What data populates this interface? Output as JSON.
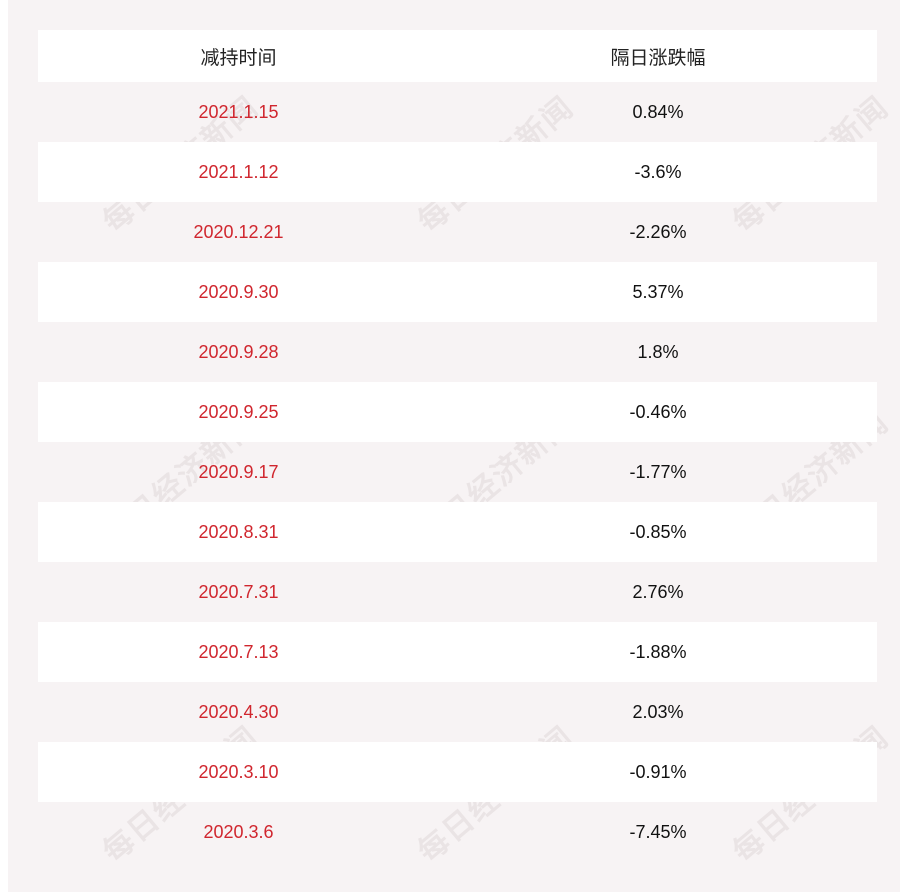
{
  "table": {
    "headers": {
      "time": "减持时间",
      "change": "隔日涨跌幅"
    },
    "rows": [
      {
        "date": "2021.1.15",
        "change": "0.84%"
      },
      {
        "date": "2021.1.12",
        "change": "-3.6%"
      },
      {
        "date": "2020.12.21",
        "change": "-2.26%"
      },
      {
        "date": "2020.9.30",
        "change": "5.37%"
      },
      {
        "date": "2020.9.28",
        "change": "1.8%"
      },
      {
        "date": "2020.9.25",
        "change": "-0.46%"
      },
      {
        "date": "2020.9.17",
        "change": "-1.77%"
      },
      {
        "date": "2020.8.31",
        "change": "-0.85%"
      },
      {
        "date": "2020.7.31",
        "change": "2.76%"
      },
      {
        "date": "2020.7.13",
        "change": "-1.88%"
      },
      {
        "date": "2020.4.30",
        "change": "2.03%"
      },
      {
        "date": "2020.3.10",
        "change": "-0.91%"
      },
      {
        "date": "2020.3.6",
        "change": "-7.45%"
      }
    ]
  },
  "watermark": {
    "text": "每日经济新闻"
  },
  "colors": {
    "date_text": "#d0262e",
    "panel_background": "#f7f3f4"
  }
}
